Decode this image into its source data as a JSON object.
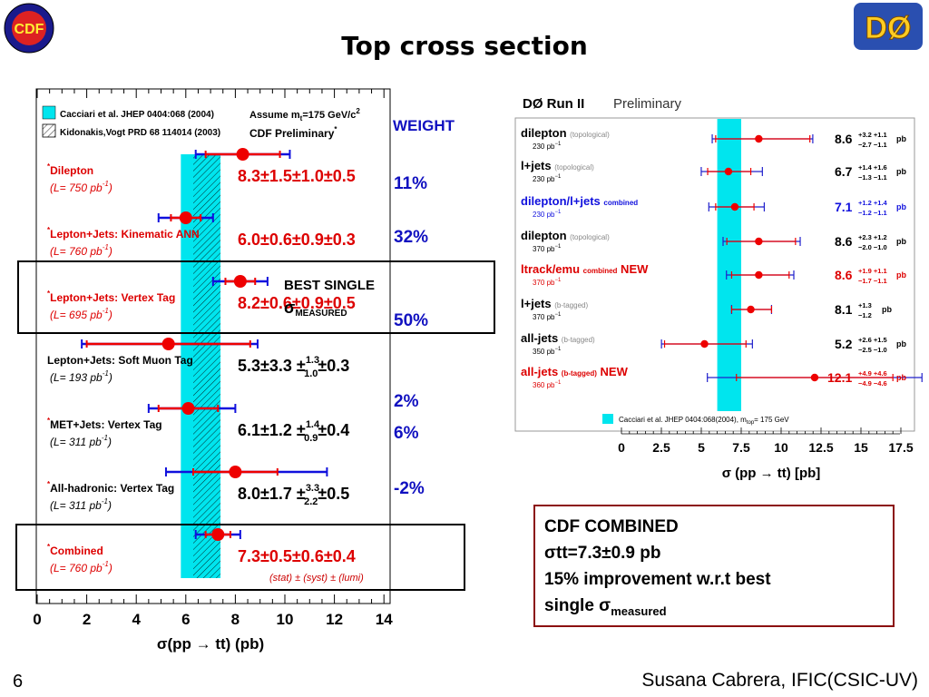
{
  "slide": {
    "title": "Top cross section",
    "number": "6",
    "author": "Susana Cabrera, IFIC(CSIC-UV)",
    "logo_left": "CDF",
    "logo_right": "DØ"
  },
  "weights": {
    "header": "WEIGHT",
    "values": [
      "11%",
      "32%",
      "50%",
      "2%",
      "6%",
      "-2%"
    ],
    "color": "#1010c0"
  },
  "best_single": {
    "line1": "BEST SINGLE",
    "sigma": "σ",
    "sub": "MEASURED"
  },
  "combined_summary": {
    "line1": "CDF COMBINED",
    "line2": "σtt=7.3±0.9 pb",
    "line3": "15% improvement w.r.t best",
    "line4_main": "single σ",
    "line4_sub": "measured"
  },
  "chart_data": [
    {
      "type": "scatter",
      "name": "CDF",
      "legend": {
        "band": "Cacciari et al. JHEP 0404:068 (2004)",
        "hatch": "Kidonakis,Vogt PRD 68 114014 (2003)",
        "assume_prefix": "Assume m",
        "assume_sub": "t",
        "assume_suffix": "=175 GeV/c",
        "assume_sup": "2",
        "preliminary": "CDF Preliminary",
        "preliminary_mark": "*"
      },
      "xlabel": "σ(pp → tt) (pb)",
      "xlim": [
        0,
        14.3
      ],
      "xticks": [
        0,
        2,
        4,
        6,
        8,
        10,
        12,
        14
      ],
      "band": {
        "min": 5.8,
        "max": 7.4,
        "color": "#00e5ee"
      },
      "hatch_band": {
        "min": 6.3,
        "max": 7.4
      },
      "stat_label": "(stat) ± (syst) ± (lumi)",
      "measurements": [
        {
          "star": "*",
          "label": "Dilepton",
          "lumi": "(L= 750 pb",
          "lumi_sup": "-1",
          "value": 8.3,
          "stat_lo": 1.5,
          "stat_hi": 1.5,
          "tot_lo": 1.9,
          "tot_hi": 1.9,
          "text": "8.3±1.5±1.0±0.5",
          "color": "red"
        },
        {
          "star": "*",
          "label": "Lepton+Jets: Kinematic ANN",
          "lumi": "(L= 760 pb",
          "lumi_sup": "-1",
          "value": 6.0,
          "stat_lo": 0.6,
          "stat_hi": 0.6,
          "tot_lo": 1.1,
          "tot_hi": 1.1,
          "text": "6.0±0.6±0.9±0.3",
          "color": "red"
        },
        {
          "star": "*",
          "label": "Lepton+Jets: Vertex Tag",
          "lumi": "(L= 695 pb",
          "lumi_sup": "-1",
          "value": 8.2,
          "stat_lo": 0.6,
          "stat_hi": 0.6,
          "tot_lo": 1.1,
          "tot_hi": 1.1,
          "text": "8.2±0.6±0.9±0.5",
          "color": "red"
        },
        {
          "star": "",
          "label": "Lepton+Jets: Soft Muon Tag",
          "lumi": "(L= 193 pb",
          "lumi_sup": "-1",
          "value": 5.3,
          "stat_lo": 3.3,
          "stat_hi": 3.3,
          "tot_lo": 3.5,
          "tot_hi": 3.6,
          "text_main": "5.3±3.3 ±",
          "text_sup": "1.3",
          "text_sub": "1.0",
          "text_tail": "±0.3",
          "color": "black"
        },
        {
          "star": "*",
          "label": "MET+Jets: Vertex Tag",
          "lumi": "(L= 311 pb",
          "lumi_sup": "-1",
          "value": 6.1,
          "stat_lo": 1.2,
          "stat_hi": 1.2,
          "tot_lo": 1.6,
          "tot_hi": 1.9,
          "text_main": "6.1±1.2 ±",
          "text_sup": "1.4",
          "text_sub": "0.9",
          "text_tail": "±0.4",
          "color": "black"
        },
        {
          "star": "*",
          "label": "All-hadronic: Vertex Tag",
          "lumi": "(L= 311 pb",
          "lumi_sup": "-1",
          "value": 8.0,
          "stat_lo": 1.7,
          "stat_hi": 1.7,
          "tot_lo": 2.8,
          "tot_hi": 3.7,
          "text_main": "8.0±1.7 ±",
          "text_sup": "3.3",
          "text_sub": "2.2",
          "text_tail": "±0.5",
          "color": "black"
        },
        {
          "star": "*",
          "label": "Combined",
          "lumi": "(L= 760 pb",
          "lumi_sup": "-1",
          "value": 7.3,
          "stat_lo": 0.5,
          "stat_hi": 0.5,
          "tot_lo": 0.9,
          "tot_hi": 0.9,
          "text": "7.3±0.5±0.6±0.4",
          "color": "red"
        }
      ]
    },
    {
      "type": "scatter",
      "name": "D0",
      "title": "DØ Run II",
      "subtitle": "Preliminary",
      "xlabel": "σ (pp → tt) [pb]",
      "xlim": [
        0,
        17.5
      ],
      "xticks": [
        0,
        2.5,
        5,
        7.5,
        10,
        12.5,
        15,
        17.5
      ],
      "band": {
        "min": 6.0,
        "max": 7.5,
        "color": "#00e5ee"
      },
      "legend": {
        "band": "Cacciari et al. JHEP 0404:068(2004), m",
        "band_sub": "top",
        "band_suffix": "= 175 GeV"
      },
      "measurements": [
        {
          "label": "dilepton",
          "tag": "(topological)",
          "lumi": "230 pb",
          "value": 8.6,
          "stat_hi": 3.2,
          "stat_lo": 2.7,
          "syst_hi": 1.1,
          "syst_lo": 1.1,
          "text": "8.6",
          "err_up": "+3.2 +1.1",
          "err_dn": "−2.7 −1.1",
          "unit": "pb",
          "color": "black",
          "new": ""
        },
        {
          "label": "l+jets",
          "tag": "(topological)",
          "lumi": "230 pb",
          "value": 6.7,
          "stat_hi": 1.4,
          "stat_lo": 1.3,
          "syst_hi": 1.6,
          "syst_lo": 1.1,
          "text": "6.7",
          "err_up": "+1.4 +1.6",
          "err_dn": "−1.3 −1.1",
          "unit": "pb",
          "color": "black",
          "new": ""
        },
        {
          "label": "dilepton/l+jets",
          "tag": "combined",
          "lumi": "230 pb",
          "value": 7.1,
          "stat_hi": 1.2,
          "stat_lo": 1.2,
          "syst_hi": 1.4,
          "syst_lo": 1.1,
          "text": "7.1",
          "err_up": "+1.2 +1.4",
          "err_dn": "−1.2 −1.1",
          "unit": "pb",
          "color": "blue",
          "new": ""
        },
        {
          "label": "dilepton",
          "tag": "(topological)",
          "lumi": "370 pb",
          "value": 8.6,
          "stat_hi": 2.3,
          "stat_lo": 2.0,
          "syst_hi": 1.2,
          "syst_lo": 1.0,
          "text": "8.6",
          "err_up": "+2.3 +1.2",
          "err_dn": "−2.0 −1.0",
          "unit": "pb",
          "color": "black",
          "new": ""
        },
        {
          "label": "ltrack/emu",
          "tag": "combined",
          "lumi": "370 pb",
          "value": 8.6,
          "stat_hi": 1.9,
          "stat_lo": 1.7,
          "syst_hi": 1.1,
          "syst_lo": 1.1,
          "text": "8.6",
          "err_up": "+1.9 +1.1",
          "err_dn": "−1.7 −1.1",
          "unit": "pb",
          "color": "red",
          "new": "NEW"
        },
        {
          "label": "l+jets",
          "tag": "(b-tagged)",
          "lumi": "370 pb",
          "value": 8.1,
          "stat_hi": 1.3,
          "stat_lo": 1.2,
          "syst_hi": 0,
          "syst_lo": 0,
          "text": "8.1",
          "err_up": "+1.3",
          "err_dn": "−1.2",
          "unit": "pb",
          "color": "black",
          "new": ""
        },
        {
          "label": "all-jets",
          "tag": "(b-tagged)",
          "lumi": "350 pb",
          "value": 5.2,
          "stat_hi": 2.6,
          "stat_lo": 2.5,
          "syst_hi": 1.5,
          "syst_lo": 1.0,
          "text": "5.2",
          "err_up": "+2.6 +1.5",
          "err_dn": "−2.5 −1.0",
          "unit": "pb",
          "color": "black",
          "new": ""
        },
        {
          "label": "all-jets",
          "tag": "(b-tagged)",
          "lumi": "360 pb",
          "value": 12.1,
          "stat_hi": 4.9,
          "stat_lo": 4.9,
          "syst_hi": 4.6,
          "syst_lo": 4.6,
          "text": "12.1",
          "err_up": "+4.9 +4.6",
          "err_dn": "−4.9 −4.6",
          "unit": "pb",
          "color": "red",
          "new": "NEW"
        }
      ]
    }
  ]
}
